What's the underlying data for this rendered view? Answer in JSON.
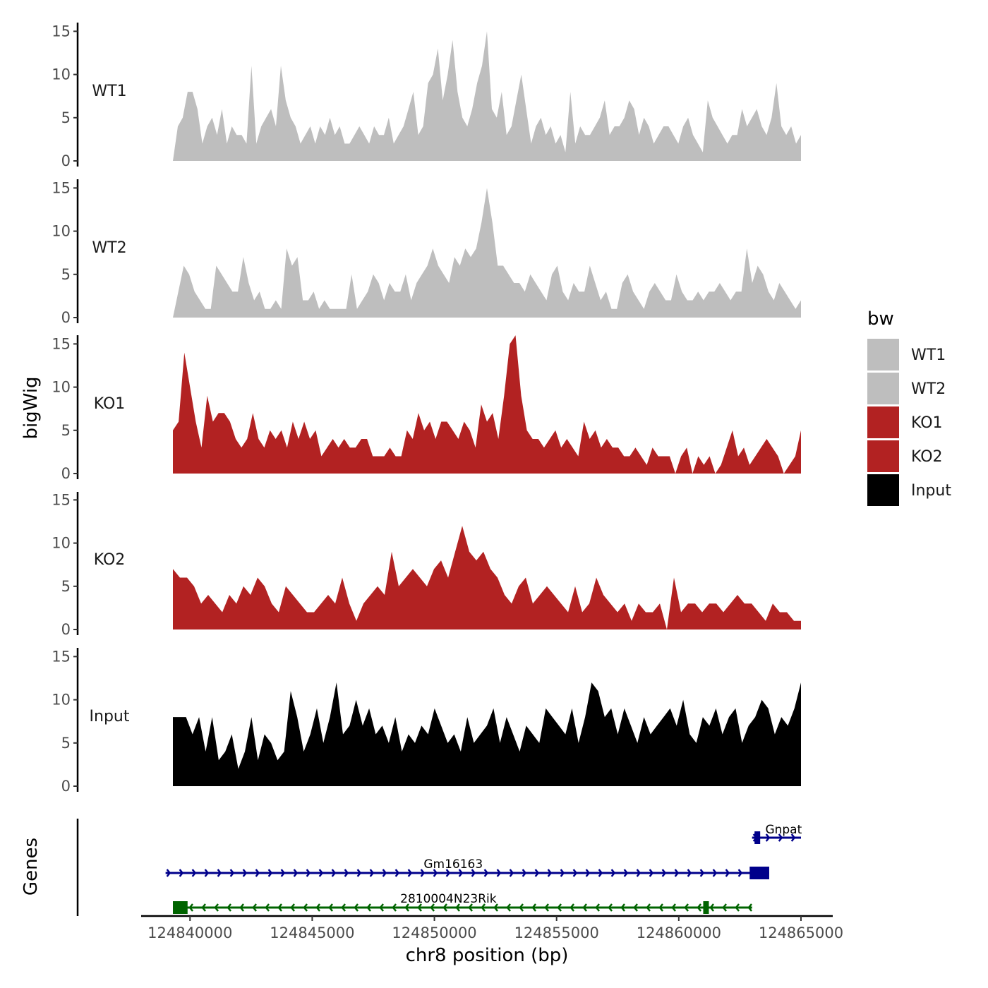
{
  "chart_data": {
    "type": "area",
    "title": "",
    "tracks_ylabel": "bigWig",
    "genes_ylabel": "Genes",
    "xlabel": "chr8 position (bp)",
    "xlim": [
      124838000,
      124866300
    ],
    "x_ticks": [
      124840000,
      124845000,
      124850000,
      124855000,
      124860000,
      124865000
    ],
    "x_tick_labels": [
      "124840000",
      "124845000",
      "124850000",
      "124855000",
      "124860000",
      "124865000"
    ],
    "ylim": [
      0,
      16.5
    ],
    "y_ticks": [
      0,
      5,
      10,
      15
    ],
    "y_tick_labels": [
      "0",
      "5",
      "10",
      "15"
    ],
    "track_x_range": [
      124839300,
      124865000
    ],
    "series": [
      {
        "name": "WT1",
        "color": "#bebebe",
        "values": [
          0,
          4,
          5,
          8,
          8,
          6,
          2,
          4,
          5,
          3,
          6,
          2,
          4,
          3,
          3,
          2,
          11,
          2,
          4,
          5,
          6,
          4,
          11,
          7,
          5,
          4,
          2,
          3,
          4,
          2,
          4,
          3,
          5,
          3,
          4,
          2,
          2,
          3,
          4,
          3,
          2,
          4,
          3,
          3,
          5,
          2,
          3,
          4,
          6,
          8,
          3,
          4,
          9,
          10,
          13,
          7,
          10,
          14,
          8,
          5,
          4,
          6,
          9,
          11,
          15,
          6,
          5,
          8,
          3,
          4,
          7,
          10,
          6,
          2,
          4,
          5,
          3,
          4,
          2,
          3,
          1,
          8,
          2,
          4,
          3,
          3,
          4,
          5,
          7,
          3,
          4,
          4,
          5,
          7,
          6,
          3,
          5,
          4,
          2,
          3,
          4,
          4,
          3,
          2,
          4,
          5,
          3,
          2,
          1,
          7,
          5,
          4,
          3,
          2,
          3,
          3,
          6,
          4,
          5,
          6,
          4,
          3,
          5,
          9,
          4,
          3,
          4,
          2,
          3
        ]
      },
      {
        "name": "WT2",
        "color": "#bebebe",
        "values": [
          0,
          3,
          6,
          5,
          3,
          2,
          1,
          1,
          6,
          5,
          4,
          3,
          3,
          7,
          4,
          2,
          3,
          1,
          1,
          2,
          1,
          8,
          6,
          7,
          2,
          2,
          3,
          1,
          2,
          1,
          1,
          1,
          1,
          5,
          1,
          2,
          3,
          5,
          4,
          2,
          4,
          3,
          3,
          5,
          2,
          4,
          5,
          6,
          8,
          6,
          5,
          4,
          7,
          6,
          8,
          7,
          8,
          11,
          15,
          11,
          6,
          6,
          5,
          4,
          4,
          3,
          5,
          4,
          3,
          2,
          5,
          6,
          3,
          2,
          4,
          3,
          3,
          6,
          4,
          2,
          3,
          1,
          1,
          4,
          5,
          3,
          2,
          1,
          3,
          4,
          3,
          2,
          2,
          5,
          3,
          2,
          2,
          3,
          2,
          3,
          3,
          4,
          3,
          2,
          3,
          3,
          8,
          4,
          6,
          5,
          3,
          2,
          4,
          3,
          2,
          1,
          2
        ]
      },
      {
        "name": "KO1",
        "color": "#b22222",
        "values": [
          5,
          6,
          14,
          10,
          6,
          3,
          9,
          6,
          7,
          7,
          6,
          4,
          3,
          4,
          7,
          4,
          3,
          5,
          4,
          5,
          3,
          6,
          4,
          6,
          4,
          5,
          2,
          3,
          4,
          3,
          4,
          3,
          3,
          4,
          4,
          2,
          2,
          2,
          3,
          2,
          2,
          5,
          4,
          7,
          5,
          6,
          4,
          6,
          6,
          5,
          4,
          6,
          5,
          3,
          8,
          6,
          7,
          4,
          9,
          15,
          16,
          9,
          5,
          4,
          4,
          3,
          4,
          5,
          3,
          4,
          3,
          2,
          6,
          4,
          5,
          3,
          4,
          3,
          3,
          2,
          2,
          3,
          2,
          1,
          3,
          2,
          2,
          2,
          0,
          2,
          3,
          0,
          2,
          1,
          2,
          0,
          1,
          3,
          5,
          2,
          3,
          1,
          2,
          3,
          4,
          3,
          2,
          0,
          1,
          2,
          5
        ]
      },
      {
        "name": "KO2",
        "color": "#b22222",
        "values": [
          7,
          6,
          6,
          5,
          3,
          4,
          3,
          2,
          4,
          3,
          5,
          4,
          6,
          5,
          3,
          2,
          5,
          4,
          3,
          2,
          2,
          3,
          4,
          3,
          6,
          3,
          1,
          3,
          4,
          5,
          4,
          9,
          5,
          6,
          7,
          6,
          5,
          7,
          8,
          6,
          9,
          12,
          9,
          8,
          9,
          7,
          6,
          4,
          3,
          5,
          6,
          3,
          4,
          5,
          4,
          3,
          2,
          5,
          2,
          3,
          6,
          4,
          3,
          2,
          3,
          1,
          3,
          2,
          2,
          3,
          0,
          6,
          2,
          3,
          3,
          2,
          3,
          3,
          2,
          3,
          4,
          3,
          3,
          2,
          1,
          3,
          2,
          2,
          1,
          1
        ]
      },
      {
        "name": "Input",
        "color": "#000000",
        "values": [
          8,
          8,
          8,
          6,
          8,
          4,
          8,
          3,
          4,
          6,
          2,
          4,
          8,
          3,
          6,
          5,
          3,
          4,
          11,
          8,
          4,
          6,
          9,
          5,
          8,
          12,
          6,
          7,
          10,
          7,
          9,
          6,
          7,
          5,
          8,
          4,
          6,
          5,
          7,
          6,
          9,
          7,
          5,
          6,
          4,
          8,
          5,
          6,
          7,
          9,
          5,
          8,
          6,
          4,
          7,
          6,
          5,
          9,
          8,
          7,
          6,
          9,
          5,
          8,
          12,
          11,
          8,
          9,
          6,
          9,
          7,
          5,
          8,
          6,
          7,
          8,
          9,
          7,
          10,
          6,
          5,
          8,
          7,
          9,
          6,
          8,
          9,
          5,
          7,
          8,
          10,
          9,
          6,
          8,
          7,
          9,
          12
        ]
      }
    ],
    "genes": [
      {
        "name": "Gnpat",
        "strand": "+",
        "color": "#00008b",
        "start": 124863000,
        "end": 124865000,
        "exons": [
          [
            124863100,
            124863300
          ]
        ]
      },
      {
        "name": "Gm16163",
        "strand": "+",
        "color": "#00008b",
        "start": 124839000,
        "end": 124863700,
        "exons": [
          [
            124862900,
            124863700
          ]
        ]
      },
      {
        "name": "2810004N23Rik",
        "strand": "-",
        "color": "#006400",
        "start": 124839300,
        "end": 124863000,
        "exons": [
          [
            124839300,
            124839900
          ],
          [
            124861000,
            124861200
          ]
        ]
      }
    ],
    "legend": {
      "title": "bw",
      "position": "right",
      "entries": [
        {
          "label": "WT1",
          "color": "#bebebe"
        },
        {
          "label": "WT2",
          "color": "#bebebe"
        },
        {
          "label": "KO1",
          "color": "#b22222"
        },
        {
          "label": "KO2",
          "color": "#b22222"
        },
        {
          "label": "Input",
          "color": "#000000"
        }
      ]
    }
  }
}
